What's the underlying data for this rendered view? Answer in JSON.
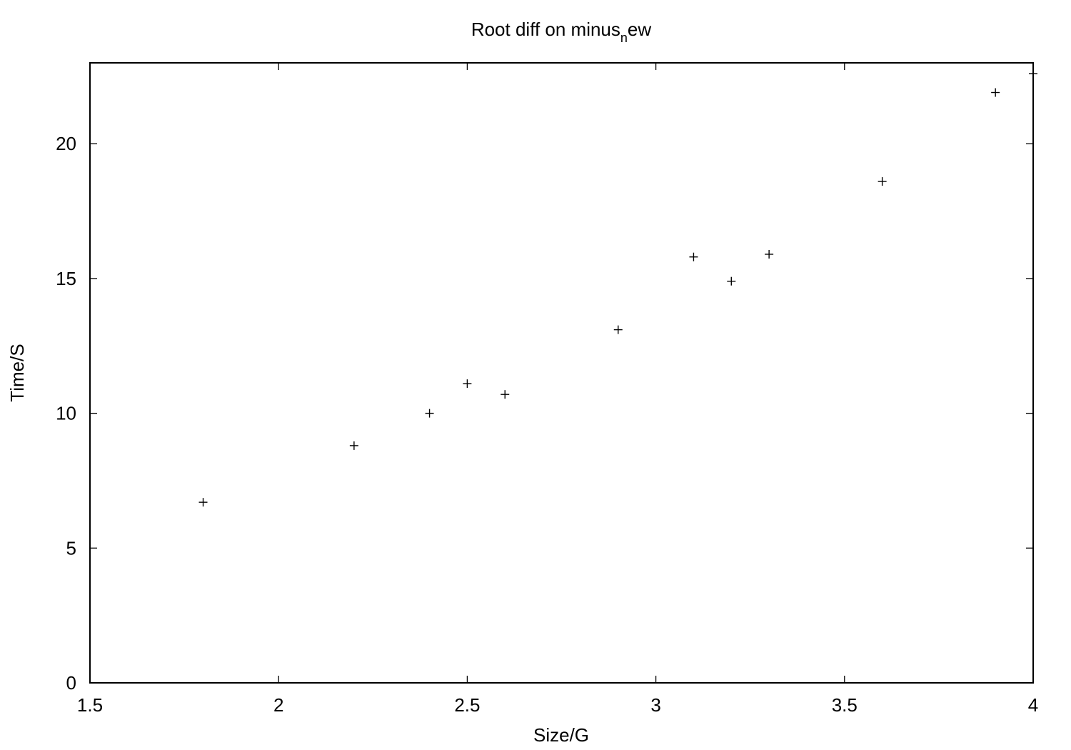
{
  "chart_data": {
    "type": "scatter",
    "title": {
      "text": "Root diff on minus",
      "subscript": "n",
      "suffix": "ew"
    },
    "xlabel": "Size/G",
    "ylabel": "Time/S",
    "xlim": [
      1.5,
      4
    ],
    "ylim": [
      0,
      23
    ],
    "x_ticks": [
      1.5,
      2,
      2.5,
      3,
      3.5,
      4
    ],
    "x_tick_labels": [
      "1.5",
      "2",
      "2.5",
      "3",
      "3.5",
      "4"
    ],
    "y_ticks": [
      0,
      5,
      10,
      15,
      20
    ],
    "y_tick_labels": [
      "0",
      "5",
      "10",
      "15",
      "20"
    ],
    "marker": "plus",
    "grid": false,
    "series": [
      {
        "x": [
          1.8,
          2.2,
          2.4,
          2.5,
          2.6,
          2.9,
          3.1,
          3.2,
          3.3,
          3.6,
          3.9,
          4.0
        ],
        "y": [
          6.7,
          8.8,
          10.0,
          11.1,
          10.7,
          13.1,
          15.8,
          14.9,
          15.9,
          18.6,
          21.9,
          22.6
        ]
      }
    ]
  }
}
